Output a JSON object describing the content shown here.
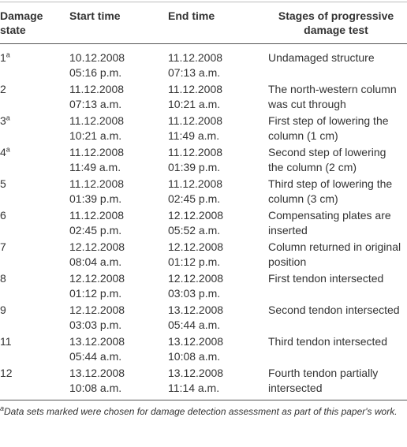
{
  "table": {
    "header": [
      "Damage state",
      "Start time",
      "End time",
      "Stages of progressive damage test"
    ],
    "rows": [
      {
        "state": "1",
        "note": "a",
        "start_date": "10.12.2008",
        "start_time": "05:16 p.m.",
        "end_date": "11.12.2008",
        "end_time": "07:13 a.m.",
        "stage": "Undamaged structure"
      },
      {
        "state": "2",
        "start_date": "11.12.2008",
        "start_time": "07:13 a.m.",
        "end_date": "11.12.2008",
        "end_time": "10:21 a.m.",
        "stage": "The north-western column was cut through"
      },
      {
        "state": "3",
        "note": "a",
        "start_date": "11.12.2008",
        "start_time": "10:21 a.m.",
        "end_date": "11.12.2008",
        "end_time": "11:49 a.m.",
        "stage": "First step of lowering the column (1 cm)"
      },
      {
        "state": "4",
        "note": "a",
        "start_date": "11.12.2008",
        "start_time": "11:49 a.m.",
        "end_date": "11.12.2008",
        "end_time": "01:39 p.m.",
        "stage": "Second step of lowering the column (2 cm)"
      },
      {
        "state": "5",
        "start_date": "11.12.2008",
        "start_time": "01:39 p.m.",
        "end_date": "11.12.2008",
        "end_time": "02:45 p.m.",
        "stage": "Third step of lowering the column (3 cm)"
      },
      {
        "state": "6",
        "start_date": "11.12.2008",
        "start_time": "02:45 p.m.",
        "end_date": "12.12.2008",
        "end_time": "05:52 a.m.",
        "stage": "Compensating plates are inserted"
      },
      {
        "state": "7",
        "start_date": "12.12.2008",
        "start_time": "08:04 a.m.",
        "end_date": "12.12.2008",
        "end_time": "01:12 p.m.",
        "stage": "Column returned in original position"
      },
      {
        "state": "8",
        "start_date": "12.12.2008",
        "start_time": "01:12 p.m.",
        "end_date": "12.12.2008",
        "end_time": "03:03 p.m.",
        "stage": "First tendon intersected"
      },
      {
        "state": "9",
        "start_date": "12.12.2008",
        "start_time": "03:03 p.m.",
        "end_date": "13.12.2008",
        "end_time": "05:44 a.m.",
        "stage": "Second tendon intersected"
      },
      {
        "state": "11",
        "start_date": "13.12.2008",
        "start_time": "05:44 a.m.",
        "end_date": "13.12.2008",
        "end_time": "10:08 a.m.",
        "stage": "Third tendon intersected"
      },
      {
        "state": "12",
        "start_date": "13.12.2008",
        "start_time": "10:08 a.m.",
        "end_date": "13.12.2008",
        "end_time": "11:14 a.m.",
        "stage": "Fourth tendon partially intersected"
      }
    ]
  },
  "footnote": {
    "mark": "a",
    "text": "Data sets marked were chosen for damage detection assessment as part of this paper's work."
  }
}
